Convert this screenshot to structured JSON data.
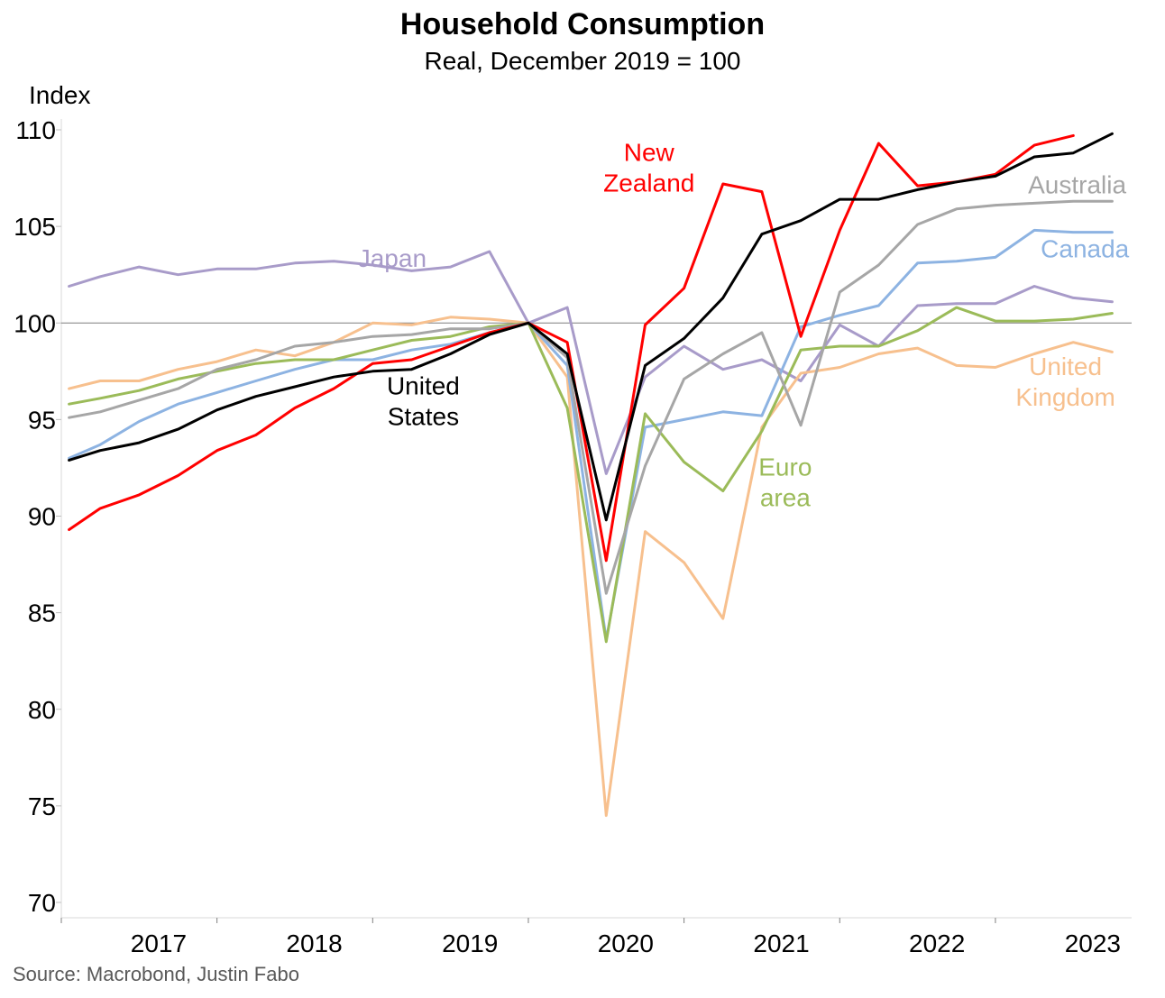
{
  "chart_data": {
    "type": "line",
    "title": "Household Consumption",
    "subtitle": "Real, December 2019 = 100",
    "ylabel": "Index",
    "xlabel": "",
    "ylim": [
      70,
      110
    ],
    "yticks": [
      70,
      75,
      80,
      85,
      90,
      95,
      100,
      105,
      110
    ],
    "xlim": [
      0,
      27.5
    ],
    "year_labels": [
      {
        "label": "2017",
        "x": 2.5
      },
      {
        "label": "2018",
        "x": 6.5
      },
      {
        "label": "2019",
        "x": 10.5
      },
      {
        "label": "2020",
        "x": 14.5
      },
      {
        "label": "2021",
        "x": 18.5
      },
      {
        "label": "2022",
        "x": 22.5
      },
      {
        "label": "2023",
        "x": 26.5
      }
    ],
    "year_boundaries": [
      0,
      4,
      8,
      12,
      16,
      20,
      24
    ],
    "reference_line": 100,
    "grid": false,
    "series": [
      {
        "name": "Japan",
        "color": "#a89bc9",
        "x": [
          0.2,
          1,
          2,
          3,
          4,
          5,
          6,
          7,
          8,
          9,
          10,
          11,
          12,
          13,
          14,
          15,
          16,
          17,
          18,
          19,
          20,
          21,
          22,
          23,
          24,
          25,
          26,
          27
        ],
        "values": [
          101.9,
          102.4,
          102.9,
          102.5,
          102.8,
          102.8,
          103.1,
          103.2,
          103.0,
          102.7,
          102.9,
          103.7,
          100.0,
          100.8,
          92.2,
          97.2,
          98.8,
          97.6,
          98.1,
          97.0,
          99.9,
          98.8,
          100.9,
          101.0,
          101.0,
          101.9,
          101.3,
          101.1
        ],
        "label": [
          "Japan"
        ],
        "label_x": 8.5,
        "label_y": 102.9
      },
      {
        "name": "United Kingdom",
        "color": "#f7c08e",
        "x": [
          0.2,
          1,
          2,
          3,
          4,
          5,
          6,
          7,
          8,
          9,
          10,
          11,
          12,
          13,
          14,
          15,
          16,
          17,
          18,
          19,
          20,
          21,
          22,
          23,
          24,
          25,
          26,
          27
        ],
        "values": [
          96.6,
          97.0,
          97.0,
          97.6,
          98.0,
          98.6,
          98.3,
          99.0,
          100.0,
          99.9,
          100.3,
          100.2,
          100.0,
          97.2,
          74.5,
          89.2,
          87.6,
          84.7,
          94.6,
          97.4,
          97.7,
          98.4,
          98.7,
          97.8,
          97.7,
          98.4,
          99.0,
          98.5
        ],
        "label": [
          "United",
          "Kingdom"
        ],
        "label_x": 25.8,
        "label_y": 97.3
      },
      {
        "name": "Canada",
        "color": "#8db3e2",
        "x": [
          0.2,
          1,
          2,
          3,
          4,
          5,
          6,
          7,
          8,
          9,
          10,
          11,
          12,
          13,
          14,
          15,
          16,
          17,
          18,
          19,
          20,
          21,
          22,
          23,
          24,
          25,
          26,
          27
        ],
        "values": [
          93.0,
          93.7,
          94.9,
          95.8,
          96.4,
          97.0,
          97.6,
          98.1,
          98.1,
          98.6,
          98.9,
          99.5,
          100.0,
          97.8,
          83.6,
          94.6,
          95.0,
          95.4,
          95.2,
          99.8,
          100.4,
          100.9,
          103.1,
          103.2,
          103.4,
          104.8,
          104.7,
          104.7
        ],
        "label": [
          "Canada"
        ],
        "label_x": 26.3,
        "label_y": 103.4
      },
      {
        "name": "Euro area",
        "color": "#9bbb59",
        "x": [
          0.2,
          1,
          2,
          3,
          4,
          5,
          6,
          7,
          8,
          9,
          10,
          11,
          12,
          13,
          14,
          15,
          16,
          17,
          18,
          19,
          20,
          21,
          22,
          23,
          24,
          25,
          26,
          27
        ],
        "values": [
          95.8,
          96.1,
          96.5,
          97.1,
          97.5,
          97.9,
          98.1,
          98.1,
          98.6,
          99.1,
          99.3,
          99.8,
          100.0,
          95.6,
          83.5,
          95.3,
          92.8,
          91.3,
          94.4,
          98.6,
          98.8,
          98.8,
          99.6,
          100.8,
          100.1,
          100.1,
          100.2,
          100.5
        ],
        "label": [
          "Euro",
          "area"
        ],
        "label_x": 18.6,
        "label_y": 92.1
      },
      {
        "name": "Australia",
        "color": "#a6a6a6",
        "x": [
          0.2,
          1,
          2,
          3,
          4,
          5,
          6,
          7,
          8,
          9,
          10,
          11,
          12,
          13,
          14,
          15,
          16,
          17,
          18,
          19,
          20,
          21,
          22,
          23,
          24,
          25,
          26,
          27
        ],
        "values": [
          95.1,
          95.4,
          96.0,
          96.6,
          97.6,
          98.1,
          98.8,
          99.0,
          99.3,
          99.4,
          99.7,
          99.7,
          100.0,
          98.2,
          86.0,
          92.6,
          97.1,
          98.4,
          99.5,
          94.7,
          101.6,
          103.0,
          105.1,
          105.9,
          106.1,
          106.2,
          106.3,
          106.3
        ],
        "label": [
          "Australia"
        ],
        "label_x": 26.1,
        "label_y": 106.7
      },
      {
        "name": "New Zealand",
        "color": "#ff0000",
        "x": [
          0.2,
          1,
          2,
          3,
          4,
          5,
          6,
          7,
          8,
          9,
          10,
          11,
          12,
          13,
          14,
          15,
          16,
          17,
          18,
          19,
          20,
          21,
          22,
          23,
          24,
          25,
          26
        ],
        "values": [
          89.3,
          90.4,
          91.1,
          92.1,
          93.4,
          94.2,
          95.6,
          96.6,
          97.9,
          98.1,
          98.8,
          99.5,
          100.0,
          99.0,
          87.7,
          99.9,
          101.8,
          107.2,
          106.8,
          99.3,
          104.8,
          109.3,
          107.1,
          107.3,
          107.7,
          109.2,
          109.7
        ],
        "label": [
          "New",
          "Zealand"
        ],
        "label_x": 15.1,
        "label_y": 108.4
      },
      {
        "name": "United States",
        "color": "#000000",
        "x": [
          0.2,
          1,
          2,
          3,
          4,
          5,
          6,
          7,
          8,
          9,
          10,
          11,
          12,
          13,
          14,
          15,
          16,
          17,
          18,
          19,
          20,
          21,
          22,
          23,
          24,
          25,
          26,
          27
        ],
        "values": [
          92.9,
          93.4,
          93.8,
          94.5,
          95.5,
          96.2,
          96.7,
          97.2,
          97.5,
          97.6,
          98.4,
          99.4,
          100.0,
          98.4,
          89.8,
          97.8,
          99.2,
          101.3,
          104.6,
          105.3,
          106.4,
          106.4,
          106.9,
          107.3,
          107.6,
          108.6,
          108.8,
          109.8
        ],
        "label": [
          "United",
          "States"
        ],
        "label_x": 9.3,
        "label_y": 96.3
      }
    ]
  },
  "source": "Source: Macrobond, Justin Fabo"
}
